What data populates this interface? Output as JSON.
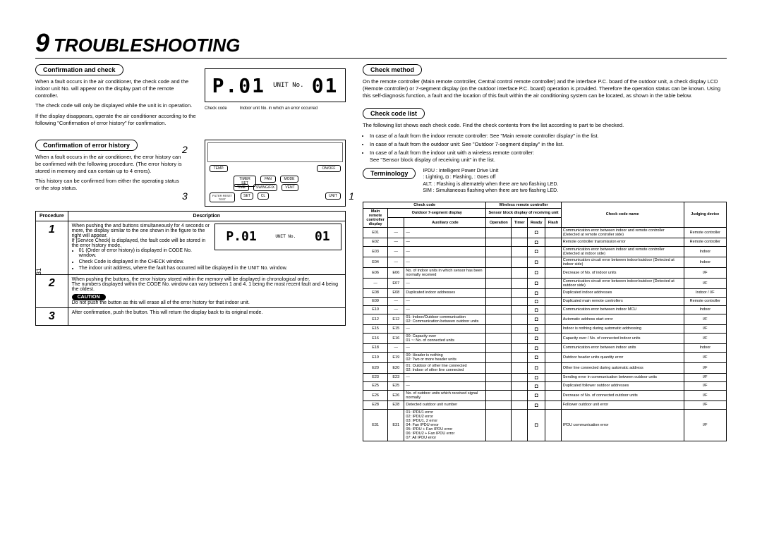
{
  "page_number": "31",
  "chapter_number": "9",
  "chapter_title": "TROUBLESHOOTING",
  "left": {
    "s1_label": "Confirmation and check",
    "s1_p1": "When a fault occurs in the air conditioner, the check code and the indoor unit No. will appear on the display part of the remote controller.",
    "s1_p2": "The check code will only be displayed while the unit is in operation.",
    "s1_p3": "If the display disappears, operate the air conditioner according to the following \"Confirmation of error history\" for confirmation.",
    "lcd_check_label": "Check code",
    "lcd_unit_label": "Indoor unit No. in which an error occurred",
    "lcd_check_val": "P.01",
    "lcd_unit_val": "01",
    "s2_label": "Confirmation of error history",
    "s2_p1": "When a fault occurs in the air conditioner, the error history can be confirmed with the following procedure. (The error history is stored in memory and can contain up to 4 errors).",
    "s2_p2": "This history can be confirmed from either the operating status or the stop status.",
    "callout_1": "1",
    "callout_2": "2",
    "callout_3": "3",
    "remote_btns": {
      "temp": "TEMP.",
      "onoff": "ON/OFF",
      "timer": "TIMER SET",
      "fan": "FAN",
      "mode": "MODE",
      "time": "TIME",
      "swing": "SWING/FIX",
      "vent": "VENT",
      "filter": "FILTER RESET TEST",
      "set": "SET",
      "cl": "CL",
      "unit": "UNIT"
    },
    "proc_header_1": "Procedure",
    "proc_header_2": "Description",
    "proc": [
      {
        "num": "1",
        "desc_p1": "When pushing the       and       buttons simultaneously for 4 seconds or more, the display similar to the one shown in the figure to the right will appear.",
        "desc_p2": "If [Service Check] is displayed, the fault code will be stored in the error history mode.",
        "desc_b1": "01 (Order of error history) is displayed in CODE No. window.",
        "desc_b2": "Check Code is displayed in the CHECK window.",
        "desc_b3": "The indoor unit address, where the fault has occurred will be displayed in the UNIT No. window.",
        "lcd_a": "P.01",
        "lcd_b": "01"
      },
      {
        "num": "2",
        "desc_p1": "When pushing the            buttons, the error history stored within the memory will be displayed in chronological order.",
        "desc_p2": "The numbers displayed within the CODE No. window can vary between 1 and 4. 1 being the most recent fault and 4 being the oldest.",
        "caution": "CAUTION",
        "caution_text": "Do not push the       button as this will erase all of the error history for that indoor unit."
      },
      {
        "num": "3",
        "desc_p1": "After confirmation, push the       button. This will return the display back to its original mode."
      }
    ]
  },
  "right": {
    "s3_label": "Check method",
    "s3_p1": "On the remote controller (Main remote controller, Central control remote controller) and the interface P.C. board of the outdoor unit, a check display LCD (Remote controller) or 7-segment display (on the outdoor interface P.C. board) operation is provided. Therefore the operation status can be known. Using this self-diagnosis function, a fault and the location of this fault within the air conditioning system can be located, as shown in the table below.",
    "s4_label": "Check code list",
    "s4_p1": "The following list shows each check code. Find the check contents from the list according to part to be checked.",
    "s4_b1": "In case of a fault from the indoor remote controller: See \"Main remote controller display\" in the list.",
    "s4_b2": "In case of a fault from the outdoor unit: See \"Outdoor 7-segment display\" in the list.",
    "s4_b3": "In case of a fault from the indoor unit with a wireless remote controller:",
    "s4_b3b": "See \"Sensor block display of receiving unit\" in the list.",
    "term_label": "Terminology",
    "term_ipdu": "IPDU : Intelligent Power Drive Unit",
    "term_light": ": Lighting,   ◘ : Flashing,     : Goes off",
    "term_alt": "ALT. : Flashing is alternately when there are two flashing LED.",
    "term_sim": "SIM : Simultaneous flashing when there are two flashing LED.",
    "table_headers": {
      "check_code": "Check code",
      "wireless": "Wireless remote controller",
      "main_rc": "Main remote controller display",
      "outdoor7": "Outdoor 7-segment display",
      "aux": "Auxiliary code",
      "sensor": "Sensor block display of receiving unit",
      "op": "Operation",
      "timer": "Timer",
      "ready": "Ready",
      "flash": "Flash",
      "name": "Check code name",
      "judge": "Judging device"
    },
    "rows": [
      {
        "mrc": "E01",
        "o7": "—",
        "aux": "—",
        "op": "",
        "ti": "",
        "re": "◘",
        "fl": "",
        "name": "Communication error between indoor and remote controller (Detected at remote controller side)",
        "jd": "Remote controller"
      },
      {
        "mrc": "E02",
        "o7": "—",
        "aux": "—",
        "op": "",
        "ti": "",
        "re": "◘",
        "fl": "",
        "name": "Remote controller transmission error",
        "jd": "Remote controller"
      },
      {
        "mrc": "E03",
        "o7": "—",
        "aux": "—",
        "op": "",
        "ti": "",
        "re": "◘",
        "fl": "",
        "name": "Communication error between indoor and remote controller (Detected at indoor side)",
        "jd": "Indoor"
      },
      {
        "mrc": "E04",
        "o7": "—",
        "aux": "—",
        "op": "",
        "ti": "",
        "re": "◘",
        "fl": "",
        "name": "Communication circuit error between indoor/outdoor (Detected at indoor side)",
        "jd": "Indoor"
      },
      {
        "mrc": "E06",
        "o7": "E06",
        "aux": "No. of indoor units in which sensor has been normally received",
        "op": "",
        "ti": "",
        "re": "◘",
        "fl": "",
        "name": "Decrease of No. of indoor units",
        "jd": "I/F"
      },
      {
        "mrc": "—",
        "o7": "E07",
        "aux": "—",
        "op": "",
        "ti": "",
        "re": "◘",
        "fl": "",
        "name": "Communication circuit error between indoor/outdoor (Detected at outdoor side)",
        "jd": "I/F"
      },
      {
        "mrc": "E08",
        "o7": "E08",
        "aux": "Duplicated indoor addresses",
        "op": "",
        "ti": "",
        "re": "◘",
        "fl": "",
        "name": "Duplicated indoor addresses",
        "jd": "Indoor / I/F"
      },
      {
        "mrc": "E09",
        "o7": "—",
        "aux": "—",
        "op": "",
        "ti": "",
        "re": "◘",
        "fl": "",
        "name": "Duplicated main remote controllers",
        "jd": "Remote controller"
      },
      {
        "mrc": "E10",
        "o7": "—",
        "aux": "—",
        "op": "",
        "ti": "",
        "re": "◘",
        "fl": "",
        "name": "Communication error between indoor MCU",
        "jd": "Indoor"
      },
      {
        "mrc": "E12",
        "o7": "E12",
        "aux": "01: Indoor/Outdoor communication\n02: Communication between outdoor units",
        "op": "",
        "ti": "",
        "re": "◘",
        "fl": "",
        "name": "Automatic address start error",
        "jd": "I/F"
      },
      {
        "mrc": "E15",
        "o7": "E15",
        "aux": "—",
        "op": "",
        "ti": "",
        "re": "◘",
        "fl": "",
        "name": "Indoor is nothing during automatic addressing",
        "jd": "I/F"
      },
      {
        "mrc": "E16",
        "o7": "E16",
        "aux": "00: Capacity over\n01 ~: No. of connected units",
        "op": "",
        "ti": "",
        "re": "◘",
        "fl": "",
        "name": "Capacity over / No. of connected indoor units",
        "jd": "I/F"
      },
      {
        "mrc": "E18",
        "o7": "—",
        "aux": "—",
        "op": "",
        "ti": "",
        "re": "◘",
        "fl": "",
        "name": "Communication error between indoor units",
        "jd": "Indoor"
      },
      {
        "mrc": "E19",
        "o7": "E19",
        "aux": "00: Header is nothing\n02: Two or more header units",
        "op": "",
        "ti": "",
        "re": "◘",
        "fl": "",
        "name": "Outdoor header units quantity error",
        "jd": "I/F"
      },
      {
        "mrc": "E20",
        "o7": "E20",
        "aux": "01: Outdoor of other line connected\n02: Indoor of other line connected",
        "op": "",
        "ti": "",
        "re": "◘",
        "fl": "",
        "name": "Other line connected during automatic address",
        "jd": "I/F"
      },
      {
        "mrc": "E23",
        "o7": "E23",
        "aux": "—",
        "op": "",
        "ti": "",
        "re": "◘",
        "fl": "",
        "name": "Sending error in communication between outdoor units",
        "jd": "I/F"
      },
      {
        "mrc": "E25",
        "o7": "E25",
        "aux": "—",
        "op": "",
        "ti": "",
        "re": "◘",
        "fl": "",
        "name": "Duplicated follower outdoor addresses",
        "jd": "I/F"
      },
      {
        "mrc": "E26",
        "o7": "E26",
        "aux": "No. of outdoor units which received signal normally",
        "op": "",
        "ti": "",
        "re": "◘",
        "fl": "",
        "name": "Decrease of No. of connected outdoor units",
        "jd": "I/F"
      },
      {
        "mrc": "E28",
        "o7": "E28",
        "aux": "Detected outdoor unit number",
        "op": "",
        "ti": "",
        "re": "◘",
        "fl": "",
        "name": "Follower outdoor unit error",
        "jd": "I/F"
      },
      {
        "mrc": "E31",
        "o7": "E31",
        "aux": "01: IPDU1 error\n02: IPDU2 error\n03: IPDU1, 2 error\n04: Fan IPDU error\n05: IPDU + Fan IPDU error\n06: IPDU2 + Fan IPDU error\n07: All IPDU error",
        "op": "",
        "ti": "",
        "re": "◘",
        "fl": "",
        "name": "IPDU communication error",
        "jd": "I/F"
      }
    ]
  }
}
